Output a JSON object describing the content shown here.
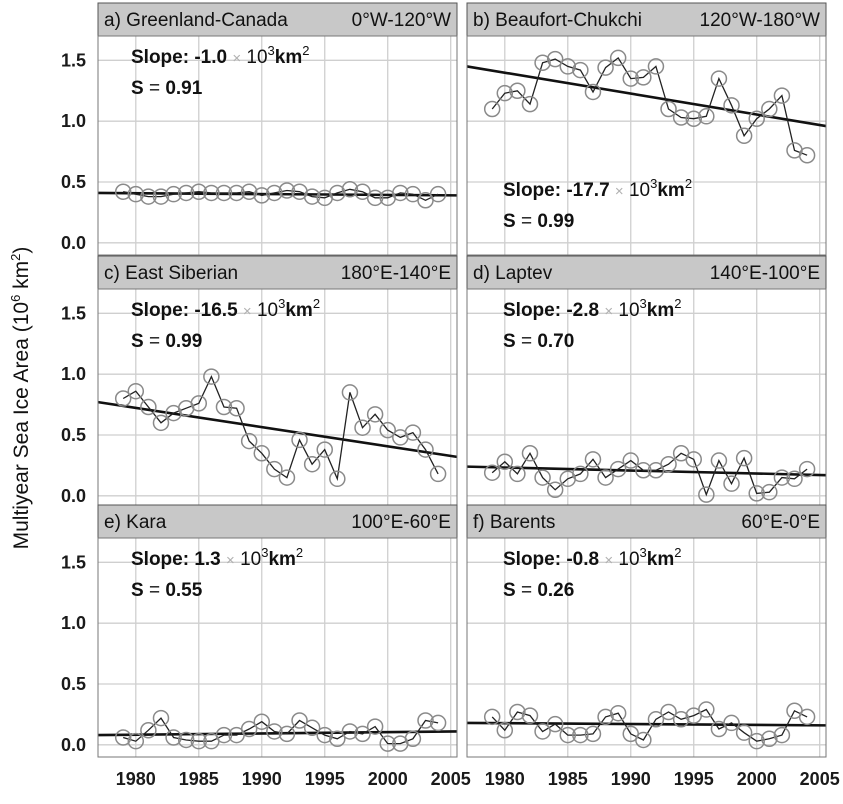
{
  "figure": {
    "ylabel": "Multiyear Sea Ice Area (10",
    "ylabel_sup": "6",
    "ylabel_end": " km",
    "ylabel_sup2": "2",
    "ylabel_close": ")"
  },
  "chart_data": [
    {
      "type": "line",
      "title": "a) Greenland-Canada",
      "region": "0°W-120°W",
      "slope_label": "Slope:",
      "slope_value": "-1.0",
      "times": "×",
      "unit_base": "10",
      "unit_exp": "3",
      "unit_km": "km",
      "unit_km_exp": "2",
      "s_label": "S",
      "s_eq": "=",
      "s_value": "0.91",
      "stats_position": "top",
      "x": [
        1979,
        1980,
        1981,
        1982,
        1983,
        1984,
        1985,
        1986,
        1987,
        1988,
        1989,
        1990,
        1991,
        1992,
        1993,
        1994,
        1995,
        1996,
        1997,
        1998,
        1999,
        2000,
        2001,
        2002,
        2003,
        2004
      ],
      "y": [
        0.42,
        0.4,
        0.38,
        0.38,
        0.4,
        0.41,
        0.42,
        0.41,
        0.41,
        0.41,
        0.42,
        0.39,
        0.41,
        0.43,
        0.42,
        0.38,
        0.37,
        0.41,
        0.44,
        0.42,
        0.37,
        0.37,
        0.41,
        0.4,
        0.35,
        0.4
      ],
      "trend": [
        0.41,
        0.39
      ],
      "xlim": [
        1977,
        2005.5
      ],
      "ylim": [
        -0.1,
        1.7
      ],
      "xticks": [
        "1980",
        "1985",
        "1990",
        "1995",
        "2000",
        "2005"
      ],
      "yticks": [
        "0.0",
        "0.5",
        "1.0",
        "1.5"
      ]
    },
    {
      "type": "line",
      "title": "b) Beaufort-Chukchi",
      "region": "120°W-180°W",
      "slope_label": "Slope:",
      "slope_value": "-17.7",
      "times": "×",
      "unit_base": "10",
      "unit_exp": "3",
      "unit_km": "km",
      "unit_km_exp": "2",
      "s_label": "S",
      "s_eq": "=",
      "s_value": "0.99",
      "stats_position": "bottom",
      "x": [
        1979,
        1980,
        1981,
        1982,
        1983,
        1984,
        1985,
        1986,
        1987,
        1988,
        1989,
        1990,
        1991,
        1992,
        1993,
        1994,
        1995,
        1996,
        1997,
        1998,
        1999,
        2000,
        2001,
        2002,
        2003,
        2004
      ],
      "y": [
        1.1,
        1.23,
        1.25,
        1.14,
        1.48,
        1.51,
        1.45,
        1.42,
        1.24,
        1.44,
        1.52,
        1.35,
        1.36,
        1.45,
        1.1,
        1.03,
        1.02,
        1.04,
        1.35,
        1.13,
        0.88,
        1.02,
        1.1,
        1.21,
        0.76,
        0.72
      ],
      "trend": [
        1.45,
        0.96
      ],
      "xlim": [
        1977,
        2005.5
      ],
      "ylim": [
        -0.1,
        1.7
      ],
      "xticks": [
        "1980",
        "1985",
        "1990",
        "1995",
        "2000",
        "2005"
      ],
      "yticks": [
        "0.0",
        "0.5",
        "1.0",
        "1.5"
      ]
    },
    {
      "type": "line",
      "title": "c) East Siberian",
      "region": "180°E-140°E",
      "slope_label": "Slope:",
      "slope_value": "-16.5",
      "times": "×",
      "unit_base": "10",
      "unit_exp": "3",
      "unit_km": "km",
      "unit_km_exp": "2",
      "s_label": "S",
      "s_eq": "=",
      "s_value": "0.99",
      "stats_position": "top",
      "x": [
        1979,
        1980,
        1981,
        1982,
        1983,
        1984,
        1985,
        1986,
        1987,
        1988,
        1989,
        1990,
        1991,
        1992,
        1993,
        1994,
        1995,
        1996,
        1997,
        1998,
        1999,
        2000,
        2001,
        2002,
        2003,
        2004
      ],
      "y": [
        0.8,
        0.86,
        0.73,
        0.6,
        0.68,
        0.72,
        0.76,
        0.98,
        0.73,
        0.72,
        0.45,
        0.35,
        0.22,
        0.15,
        0.46,
        0.26,
        0.38,
        0.14,
        0.85,
        0.56,
        0.67,
        0.54,
        0.48,
        0.52,
        0.38,
        0.18
      ],
      "trend": [
        0.77,
        0.32
      ],
      "xlim": [
        1977,
        2005.5
      ],
      "ylim": [
        -0.1,
        1.7
      ],
      "xticks": [
        "1980",
        "1985",
        "1990",
        "1995",
        "2000",
        "2005"
      ],
      "yticks": [
        "0.0",
        "0.5",
        "1.0",
        "1.5"
      ]
    },
    {
      "type": "line",
      "title": "d) Laptev",
      "region": "140°E-100°E",
      "slope_label": "Slope:",
      "slope_value": "-2.8",
      "times": "×",
      "unit_base": "10",
      "unit_exp": "3",
      "unit_km": "km",
      "unit_km_exp": "2",
      "s_label": "S",
      "s_eq": "=",
      "s_value": "0.70",
      "stats_position": "top",
      "x": [
        1979,
        1980,
        1981,
        1982,
        1983,
        1984,
        1985,
        1986,
        1987,
        1988,
        1989,
        1990,
        1991,
        1992,
        1993,
        1994,
        1995,
        1996,
        1997,
        1998,
        1999,
        2000,
        2001,
        2002,
        2003,
        2004
      ],
      "y": [
        0.19,
        0.28,
        0.18,
        0.35,
        0.15,
        0.05,
        0.14,
        0.18,
        0.3,
        0.15,
        0.22,
        0.29,
        0.21,
        0.21,
        0.26,
        0.35,
        0.3,
        0.01,
        0.29,
        0.1,
        0.31,
        0.02,
        0.03,
        0.15,
        0.14,
        0.22
      ],
      "trend": [
        0.24,
        0.17
      ],
      "xlim": [
        1977,
        2005.5
      ],
      "ylim": [
        -0.1,
        1.7
      ],
      "xticks": [
        "1980",
        "1985",
        "1990",
        "1995",
        "2000",
        "2005"
      ],
      "yticks": [
        "0.0",
        "0.5",
        "1.0",
        "1.5"
      ]
    },
    {
      "type": "line",
      "title": "e) Kara",
      "region": "100°E-60°E",
      "slope_label": "Slope:",
      "slope_value": "1.3",
      "times": "×",
      "unit_base": "10",
      "unit_exp": "3",
      "unit_km": "km",
      "unit_km_exp": "2",
      "s_label": "S",
      "s_eq": "=",
      "s_value": "0.55",
      "stats_position": "top",
      "x": [
        1979,
        1980,
        1981,
        1982,
        1983,
        1984,
        1985,
        1986,
        1987,
        1988,
        1989,
        1990,
        1991,
        1992,
        1993,
        1994,
        1995,
        1996,
        1997,
        1998,
        1999,
        2000,
        2001,
        2002,
        2003,
        2004
      ],
      "y": [
        0.06,
        0.03,
        0.12,
        0.22,
        0.06,
        0.04,
        0.03,
        0.03,
        0.08,
        0.08,
        0.13,
        0.19,
        0.11,
        0.09,
        0.2,
        0.14,
        0.08,
        0.05,
        0.11,
        0.09,
        0.15,
        0.01,
        0.01,
        0.05,
        0.2,
        0.18
      ],
      "trend": [
        0.08,
        0.11
      ],
      "xlim": [
        1977,
        2005.5
      ],
      "ylim": [
        -0.1,
        1.7
      ],
      "xticks": [
        "1980",
        "1985",
        "1990",
        "1995",
        "2000",
        "2005"
      ],
      "yticks": [
        "0.0",
        "0.5",
        "1.0",
        "1.5"
      ]
    },
    {
      "type": "line",
      "title": "f) Barents",
      "region": "60°E-0°E",
      "slope_label": "Slope:",
      "slope_value": "-0.8",
      "times": "×",
      "unit_base": "10",
      "unit_exp": "3",
      "unit_km": "km",
      "unit_km_exp": "2",
      "s_label": "S",
      "s_eq": "=",
      "s_value": "0.26",
      "stats_position": "top",
      "x": [
        1979,
        1980,
        1981,
        1982,
        1983,
        1984,
        1985,
        1986,
        1987,
        1988,
        1989,
        1990,
        1991,
        1992,
        1993,
        1994,
        1995,
        1996,
        1997,
        1998,
        1999,
        2000,
        2001,
        2002,
        2003,
        2004
      ],
      "y": [
        0.23,
        0.12,
        0.27,
        0.24,
        0.11,
        0.17,
        0.08,
        0.08,
        0.09,
        0.23,
        0.26,
        0.09,
        0.04,
        0.21,
        0.27,
        0.21,
        0.24,
        0.29,
        0.13,
        0.18,
        0.1,
        0.03,
        0.05,
        0.08,
        0.28,
        0.23
      ],
      "trend": [
        0.18,
        0.16
      ],
      "xlim": [
        1977,
        2005.5
      ],
      "ylim": [
        -0.1,
        1.7
      ],
      "xticks": [
        "1980",
        "1985",
        "1990",
        "1995",
        "2000",
        "2005"
      ],
      "yticks": [
        "0.0",
        "0.5",
        "1.0",
        "1.5"
      ]
    }
  ]
}
